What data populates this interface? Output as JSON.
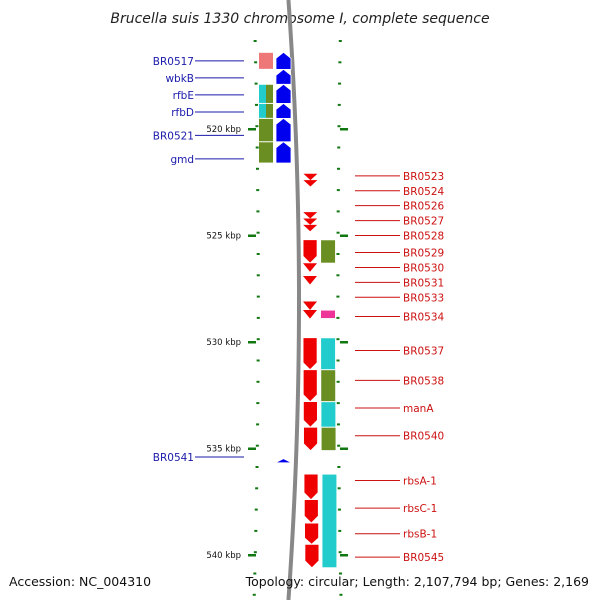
{
  "title": "Brucella suis 1330 chromosome I, complete sequence",
  "footer": {
    "accession": "Accession: NC_004310",
    "summary": "Topology: circular; Length: 2,107,794 bp; Genes: 2,169"
  },
  "colors": {
    "forward_cds": "#0000ee",
    "reverse_cds": "#ee0000",
    "cyan_category": "#22cccc",
    "olive_category": "#6b8e23",
    "pink_category": "#ee3399",
    "salmon_category": "#ee7777",
    "backbone": "#888888",
    "tick": "#117711"
  },
  "kbp_ticks": [
    {
      "label": "520 kbp",
      "kbp": 520
    },
    {
      "label": "525 kbp",
      "kbp": 525
    },
    {
      "label": "530 kbp",
      "kbp": 530
    },
    {
      "label": "535 kbp",
      "kbp": 535
    },
    {
      "label": "540 kbp",
      "kbp": 540
    }
  ],
  "left_labels": [
    {
      "label": "BR0517",
      "kbp": 516.8
    },
    {
      "label": "wbkB",
      "kbp": 517.6
    },
    {
      "label": "rfbE",
      "kbp": 518.4
    },
    {
      "label": "rfbD",
      "kbp": 519.2
    },
    {
      "label": "BR0521",
      "kbp": 520.3
    },
    {
      "label": "gmd",
      "kbp": 521.4
    },
    {
      "label": "BR0541",
      "kbp": 535.4
    }
  ],
  "right_labels": [
    {
      "label": "BR0523",
      "kbp": 522.2
    },
    {
      "label": "BR0524",
      "kbp": 522.9
    },
    {
      "label": "BR0526",
      "kbp": 523.6
    },
    {
      "label": "BR0527",
      "kbp": 524.3
    },
    {
      "label": "BR0528",
      "kbp": 525.0
    },
    {
      "label": "BR0529",
      "kbp": 525.8
    },
    {
      "label": "BR0530",
      "kbp": 526.5
    },
    {
      "label": "BR0531",
      "kbp": 527.2
    },
    {
      "label": "BR0533",
      "kbp": 527.9
    },
    {
      "label": "BR0534",
      "kbp": 528.8
    },
    {
      "label": "BR0537",
      "kbp": 530.4
    },
    {
      "label": "BR0538",
      "kbp": 531.8
    },
    {
      "label": "manA",
      "kbp": 533.1
    },
    {
      "label": "BR0540",
      "kbp": 534.4
    },
    {
      "label": "rbsA-1",
      "kbp": 536.5
    },
    {
      "label": "rbsC-1",
      "kbp": 537.8
    },
    {
      "label": "rbsB-1",
      "kbp": 539.0
    },
    {
      "label": "BR0545",
      "kbp": 540.1
    }
  ],
  "forward_genes": [
    {
      "start_kbp": 516.4,
      "end_kbp": 517.2
    },
    {
      "start_kbp": 517.2,
      "end_kbp": 517.9
    },
    {
      "start_kbp": 517.9,
      "end_kbp": 518.8
    },
    {
      "start_kbp": 518.8,
      "end_kbp": 519.5
    },
    {
      "start_kbp": 519.5,
      "end_kbp": 520.6
    },
    {
      "start_kbp": 520.6,
      "end_kbp": 521.6
    },
    {
      "start_kbp": 535.5,
      "end_kbp": 535.65
    }
  ],
  "forward_categories": [
    {
      "start_kbp": 516.4,
      "end_kbp": 517.2,
      "color": "salmon"
    },
    {
      "start_kbp": 517.9,
      "end_kbp": 518.8,
      "color": "split"
    },
    {
      "start_kbp": 518.8,
      "end_kbp": 519.5,
      "color": "split"
    },
    {
      "start_kbp": 519.5,
      "end_kbp": 520.6,
      "color": "olive"
    },
    {
      "start_kbp": 520.6,
      "end_kbp": 521.6,
      "color": "olive"
    }
  ],
  "reverse_genes": [
    {
      "start_kbp": 522.1,
      "end_kbp": 522.4
    },
    {
      "start_kbp": 522.4,
      "end_kbp": 522.7
    },
    {
      "start_kbp": 523.9,
      "end_kbp": 524.2
    },
    {
      "start_kbp": 524.2,
      "end_kbp": 524.5
    },
    {
      "start_kbp": 524.5,
      "end_kbp": 524.8
    },
    {
      "start_kbp": 525.2,
      "end_kbp": 526.3
    },
    {
      "start_kbp": 526.3,
      "end_kbp": 526.7
    },
    {
      "start_kbp": 526.9,
      "end_kbp": 527.3
    },
    {
      "start_kbp": 528.1,
      "end_kbp": 528.5
    },
    {
      "start_kbp": 528.5,
      "end_kbp": 528.9
    },
    {
      "start_kbp": 529.8,
      "end_kbp": 531.3
    },
    {
      "start_kbp": 531.3,
      "end_kbp": 532.8
    },
    {
      "start_kbp": 532.8,
      "end_kbp": 534.0
    },
    {
      "start_kbp": 534.0,
      "end_kbp": 535.1
    },
    {
      "start_kbp": 536.2,
      "end_kbp": 537.4
    },
    {
      "start_kbp": 537.4,
      "end_kbp": 538.5
    },
    {
      "start_kbp": 538.5,
      "end_kbp": 539.5
    },
    {
      "start_kbp": 539.5,
      "end_kbp": 540.6
    }
  ],
  "reverse_categories": [
    {
      "start_kbp": 525.2,
      "end_kbp": 526.3,
      "color": "olive"
    },
    {
      "start_kbp": 528.5,
      "end_kbp": 528.9,
      "color": "pink"
    },
    {
      "start_kbp": 529.8,
      "end_kbp": 531.3,
      "color": "cyan"
    },
    {
      "start_kbp": 531.3,
      "end_kbp": 532.8,
      "color": "olive"
    },
    {
      "start_kbp": 532.8,
      "end_kbp": 534.0,
      "color": "cyan"
    },
    {
      "start_kbp": 534.0,
      "end_kbp": 535.1,
      "color": "olive"
    },
    {
      "start_kbp": 536.2,
      "end_kbp": 540.6,
      "color": "cyan"
    }
  ]
}
